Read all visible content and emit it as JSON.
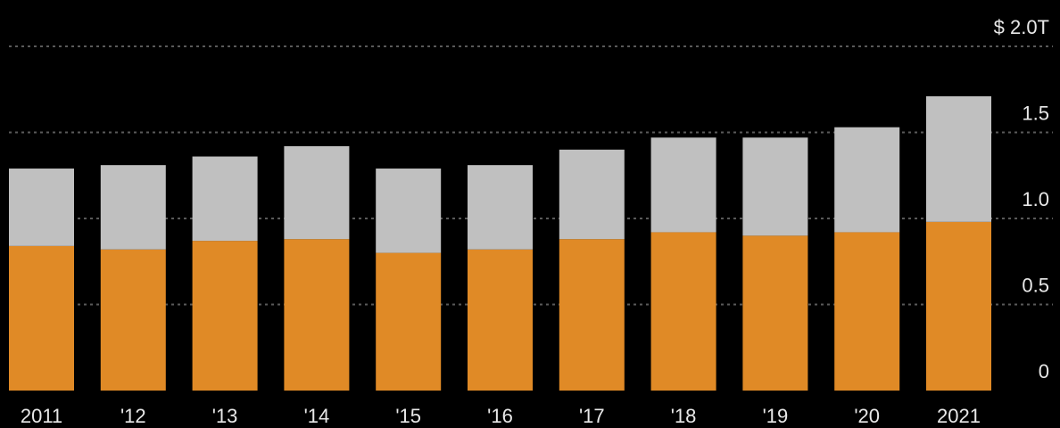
{
  "chart_data": {
    "type": "bar",
    "stacked": true,
    "categories": [
      "2011",
      "'12",
      "'13",
      "'14",
      "'15",
      "'16",
      "'17",
      "'18",
      "'19",
      "'20",
      "2021"
    ],
    "series": [
      {
        "color": "#e08a26",
        "values": [
          0.84,
          0.82,
          0.87,
          0.88,
          0.8,
          0.82,
          0.88,
          0.92,
          0.9,
          0.92,
          0.98
        ]
      },
      {
        "color": "#c0c0c0",
        "values": [
          0.45,
          0.49,
          0.49,
          0.54,
          0.49,
          0.49,
          0.52,
          0.55,
          0.57,
          0.61,
          0.73
        ]
      }
    ],
    "y_ticks": [
      {
        "value": 0,
        "label": "0"
      },
      {
        "value": 0.5,
        "label": "0.5"
      },
      {
        "value": 1.0,
        "label": "1.0"
      },
      {
        "value": 1.5,
        "label": "1.5"
      },
      {
        "value": 2.0,
        "label": "$ 2.0T"
      }
    ],
    "ylim": [
      0,
      2.0
    ],
    "grid": true,
    "legend": "top-left, cropped",
    "colors": {
      "background": "#000000",
      "text": "#e8e8e8",
      "grid": "#5a5a5a"
    }
  }
}
